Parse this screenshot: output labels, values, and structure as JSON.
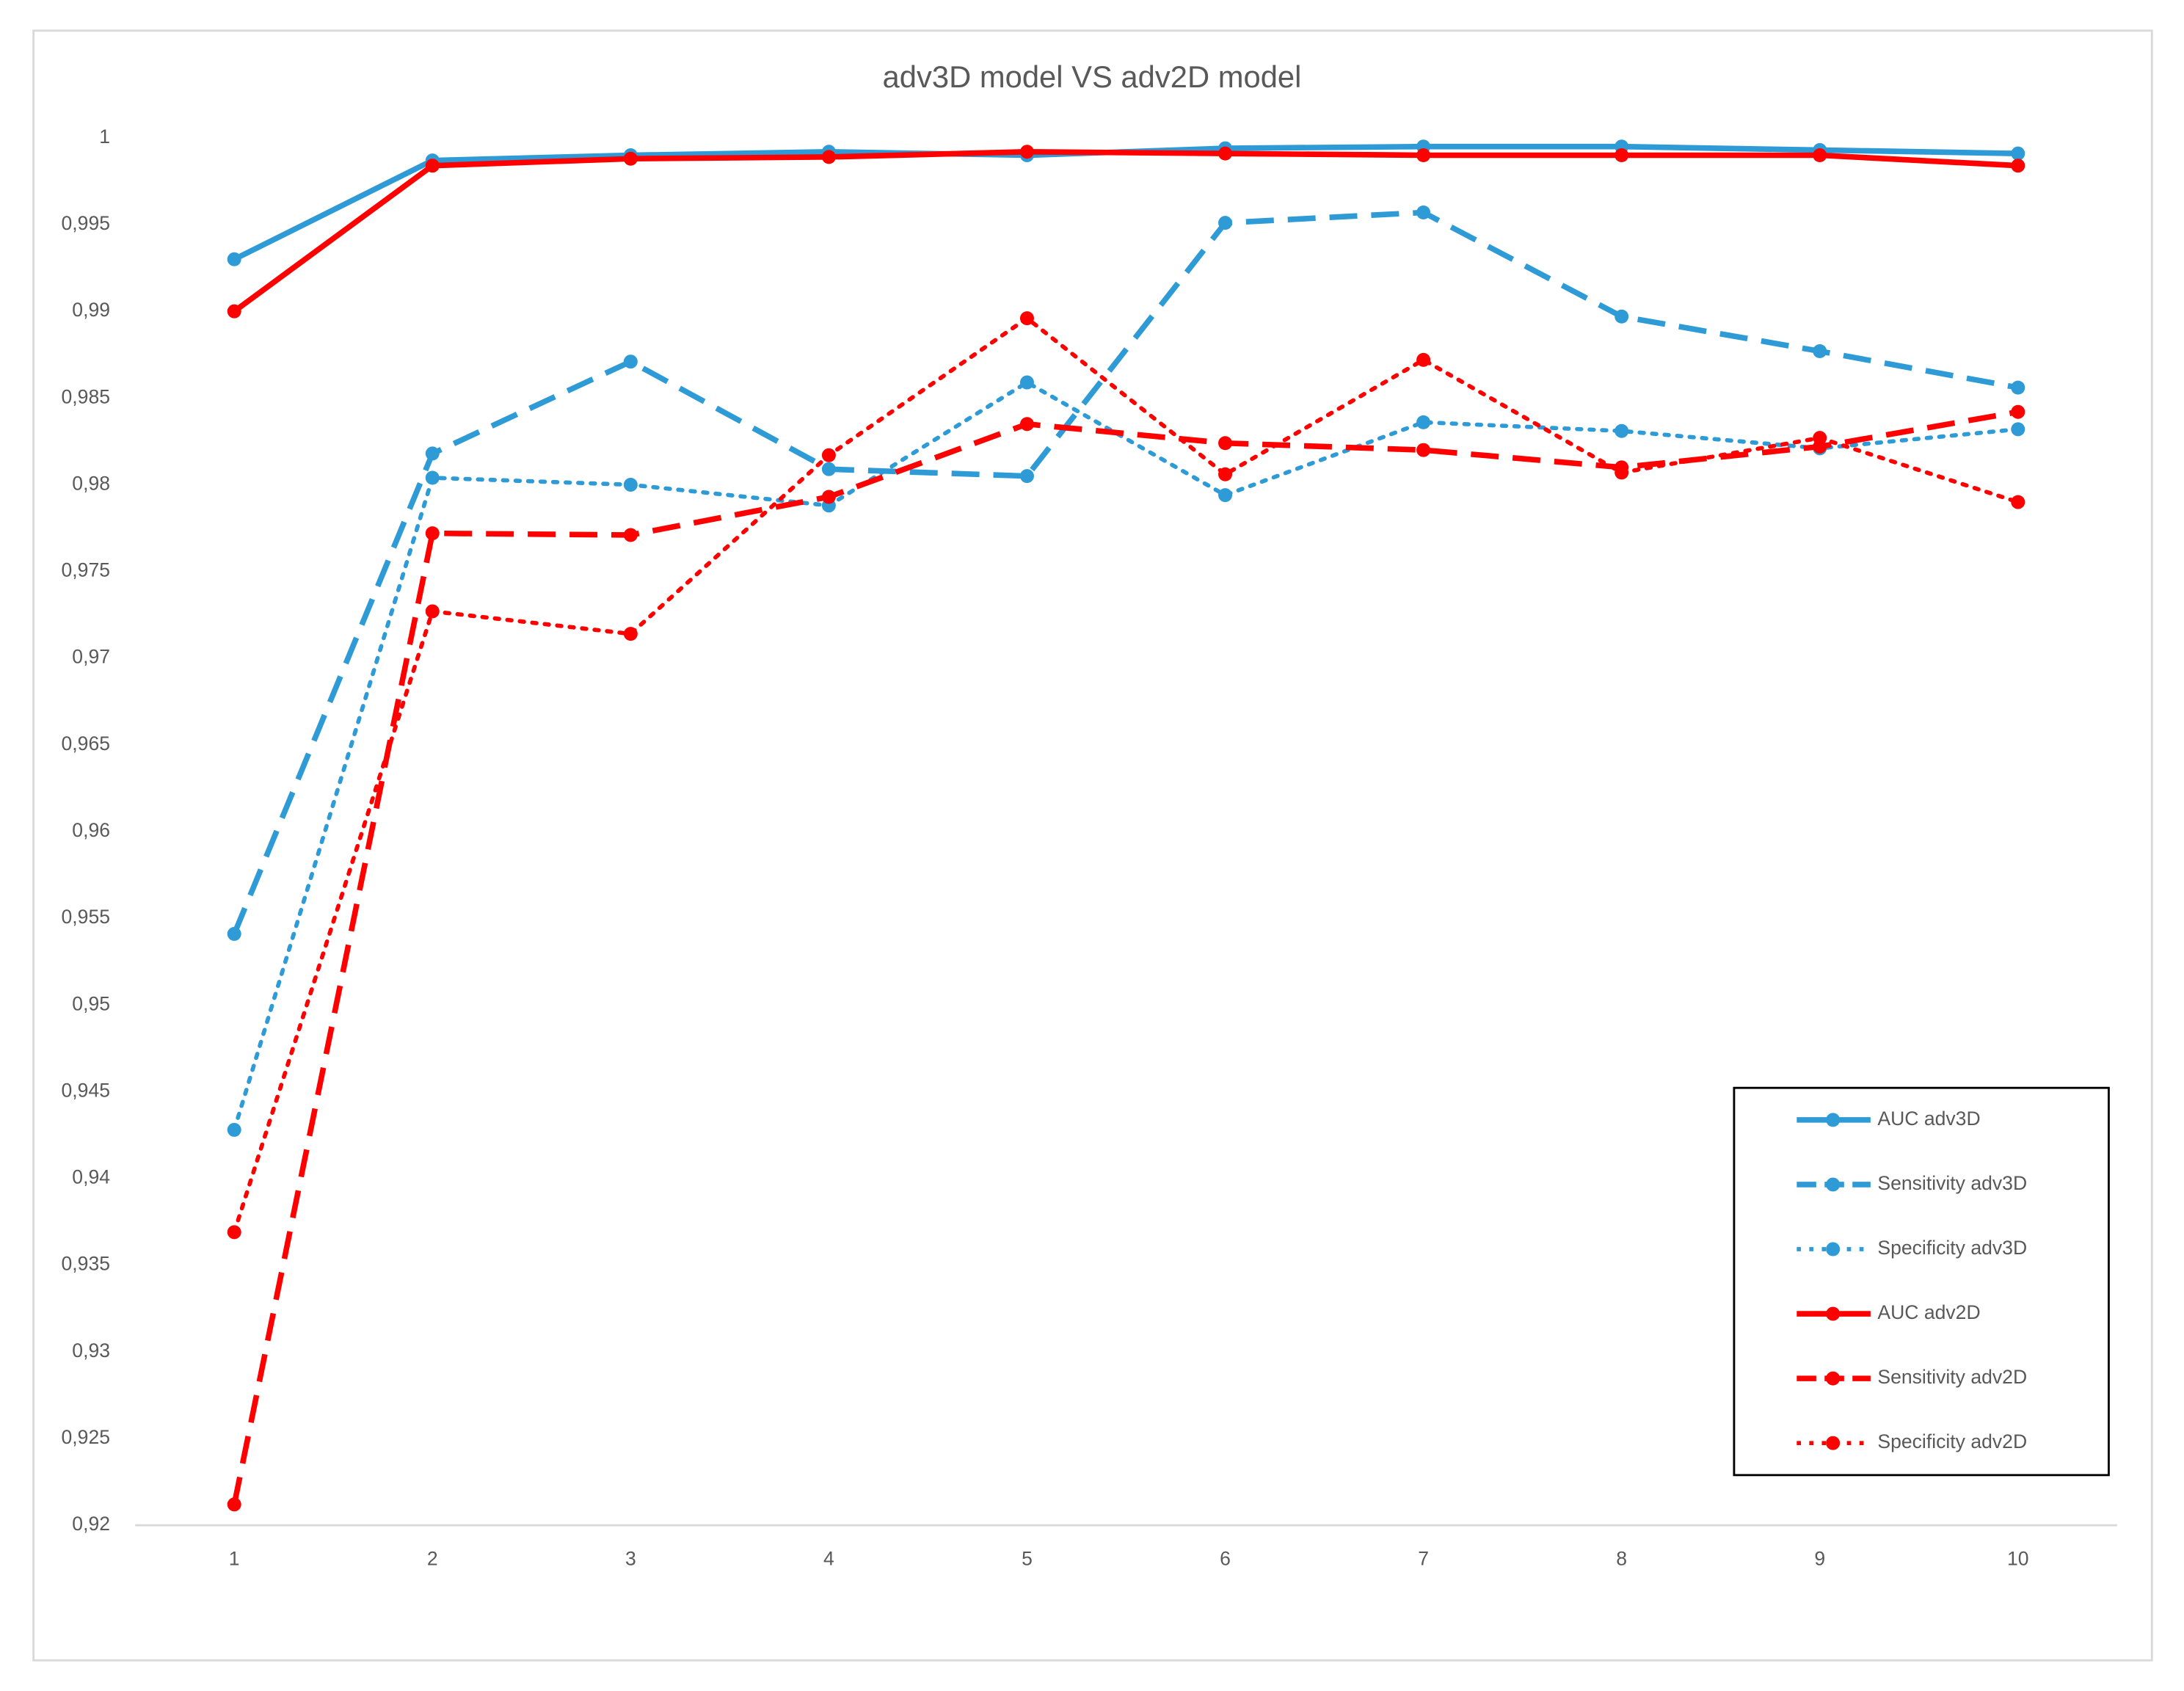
{
  "chart_data": {
    "type": "line",
    "title": "adv3D model VS adv2D model",
    "categories": [
      "1",
      "2",
      "3",
      "4",
      "5",
      "6",
      "7",
      "8",
      "9",
      "10"
    ],
    "ylim": [
      0.92,
      1
    ],
    "yticks": [
      {
        "value": 0.92,
        "label": "0,92"
      },
      {
        "value": 0.925,
        "label": "0,925"
      },
      {
        "value": 0.93,
        "label": "0,93"
      },
      {
        "value": 0.935,
        "label": "0,935"
      },
      {
        "value": 0.94,
        "label": "0,94"
      },
      {
        "value": 0.945,
        "label": "0,945"
      },
      {
        "value": 0.95,
        "label": "0,95"
      },
      {
        "value": 0.955,
        "label": "0,955"
      },
      {
        "value": 0.96,
        "label": "0,96"
      },
      {
        "value": 0.965,
        "label": "0,965"
      },
      {
        "value": 0.97,
        "label": "0,97"
      },
      {
        "value": 0.975,
        "label": "0,975"
      },
      {
        "value": 0.98,
        "label": "0,98"
      },
      {
        "value": 0.985,
        "label": "0,985"
      },
      {
        "value": 0.99,
        "label": "0,99"
      },
      {
        "value": 0.995,
        "label": "0,995"
      },
      1
    ],
    "grid": false,
    "legend": "bottom-right",
    "series": [
      {
        "name": "AUC adv3D",
        "color": "#2e9bd6",
        "line_style": "solid",
        "values": [
          0.993,
          0.9987,
          0.999,
          0.9992,
          0.999,
          0.9994,
          0.9995,
          0.9995,
          0.9993,
          0.9991
        ]
      },
      {
        "name": "Sensitivity adv3D",
        "color": "#2e9bd6",
        "line_style": "dash",
        "values": [
          0.9541,
          0.9818,
          0.9871,
          0.9809,
          0.9805,
          0.9951,
          0.9957,
          0.9897,
          0.9877,
          0.9856
        ]
      },
      {
        "name": "Specificity adv3D",
        "color": "#2e9bd6",
        "line_style": "dot",
        "values": [
          0.9428,
          0.9804,
          0.98,
          0.9788,
          0.9859,
          0.9794,
          0.9836,
          0.9831,
          0.9821,
          0.9832
        ]
      },
      {
        "name": "AUC adv2D",
        "color": "#ff0000",
        "line_style": "solid",
        "values": [
          0.99,
          0.9984,
          0.9988,
          0.9989,
          0.9992,
          0.9991,
          0.999,
          0.999,
          0.999,
          0.9984
        ]
      },
      {
        "name": "Sensitivity adv2D",
        "color": "#ff0000",
        "line_style": "dash",
        "values": [
          0.9212,
          0.9772,
          0.9771,
          0.9793,
          0.9835,
          0.9824,
          0.982,
          0.981,
          0.9822,
          0.9842
        ]
      },
      {
        "name": "Specificity adv2D",
        "color": "#ff0000",
        "line_style": "dot",
        "values": [
          0.9369,
          0.9727,
          0.9714,
          0.9817,
          0.9896,
          0.9806,
          0.9872,
          0.9807,
          0.9827,
          0.979
        ]
      }
    ]
  }
}
